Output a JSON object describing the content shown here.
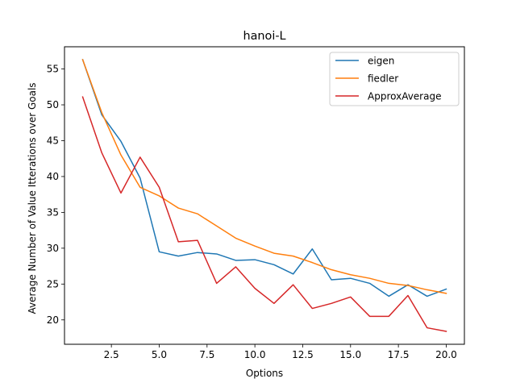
{
  "chart_data": {
    "type": "line",
    "title": "hanoi-L",
    "xlabel": "Options",
    "ylabel": "Average Number of Value Itterations over Goals",
    "xlim": [
      0.05,
      20.95
    ],
    "ylim": [
      16.6,
      58.1
    ],
    "xticks": [
      2.5,
      5.0,
      7.5,
      10.0,
      12.5,
      15.0,
      17.5,
      20.0
    ],
    "xtick_labels": [
      "2.5",
      "5.0",
      "7.5",
      "10.0",
      "12.5",
      "15.0",
      "17.5",
      "20.0"
    ],
    "yticks": [
      20,
      25,
      30,
      35,
      40,
      45,
      50,
      55
    ],
    "ytick_labels": [
      "20",
      "25",
      "30",
      "35",
      "40",
      "45",
      "50",
      "55"
    ],
    "grid": false,
    "legend_position": "top-right",
    "x": [
      1,
      2,
      3,
      4,
      5,
      6,
      7,
      8,
      9,
      10,
      11,
      12,
      13,
      14,
      15,
      16,
      17,
      18,
      19,
      20
    ],
    "series": [
      {
        "name": "eigen",
        "color": "#1f77b4",
        "values": [
          56.3,
          48.6,
          44.9,
          39.8,
          29.5,
          28.9,
          29.4,
          29.2,
          28.3,
          28.4,
          27.7,
          26.4,
          29.9,
          25.6,
          25.8,
          25.1,
          23.3,
          24.9,
          23.3,
          24.3
        ]
      },
      {
        "name": "fiedler",
        "color": "#ff7f0e",
        "values": [
          56.3,
          48.9,
          43.0,
          38.5,
          37.3,
          35.6,
          34.8,
          33.1,
          31.4,
          30.3,
          29.3,
          28.9,
          28.0,
          27.0,
          26.3,
          25.8,
          25.1,
          24.8,
          24.2,
          23.7
        ]
      },
      {
        "name": "ApproxAverage",
        "color": "#d62728",
        "values": [
          51.1,
          43.3,
          37.7,
          42.7,
          38.5,
          30.9,
          31.1,
          25.1,
          27.4,
          24.4,
          22.3,
          24.9,
          21.6,
          22.3,
          23.2,
          20.5,
          20.5,
          23.4,
          18.9,
          18.4
        ]
      }
    ]
  }
}
